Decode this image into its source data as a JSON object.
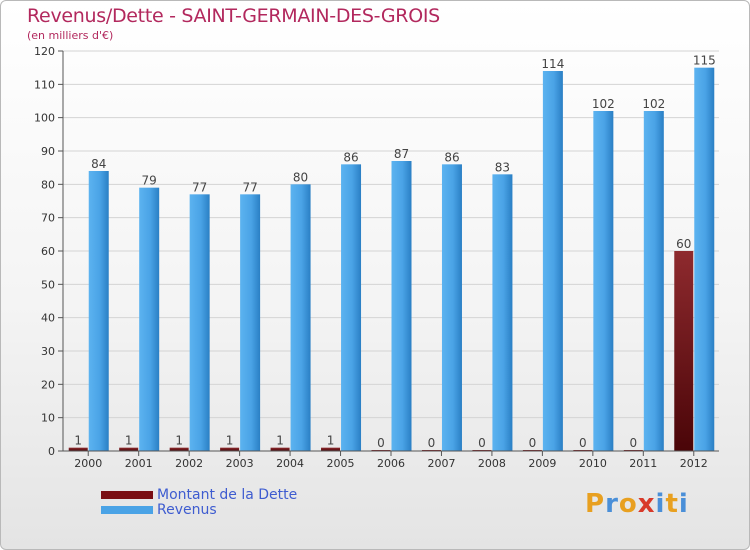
{
  "header": {
    "title": "Revenus/Dette - SAINT-GERMAIN-DES-GROIS",
    "subtitle": "(en milliers d'€)"
  },
  "logo": {
    "text": "Proxiti",
    "letters": [
      "P",
      "r",
      "o",
      "x",
      "i",
      "t",
      "i"
    ],
    "colors": [
      "#e8a020",
      "#4a8fd8",
      "#e8a020",
      "#d83a2a",
      "#4a8fd8",
      "#e8a020",
      "#4a8fd8"
    ]
  },
  "chart_data": {
    "type": "bar",
    "categories": [
      "2000",
      "2001",
      "2002",
      "2003",
      "2004",
      "2005",
      "2006",
      "2007",
      "2008",
      "2009",
      "2010",
      "2011",
      "2012"
    ],
    "series": [
      {
        "name": "Montant de la Dette",
        "color": "#7a0f14",
        "values": [
          1,
          1,
          1,
          1,
          1,
          1,
          0,
          0,
          0,
          0,
          0,
          0,
          60
        ]
      },
      {
        "name": "Revenus",
        "color": "#4aa3e6",
        "values": [
          84,
          79,
          77,
          77,
          80,
          86,
          87,
          86,
          83,
          114,
          102,
          102,
          115
        ]
      }
    ],
    "ylim": [
      0,
      120
    ],
    "yticks": [
      0,
      10,
      20,
      30,
      40,
      50,
      60,
      70,
      80,
      90,
      100,
      110,
      120
    ],
    "grid": true,
    "legend_position": "bottom-left"
  }
}
